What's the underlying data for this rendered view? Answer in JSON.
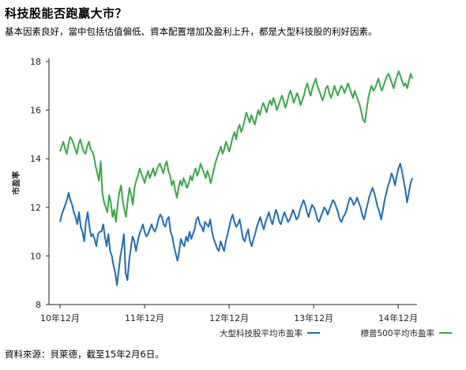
{
  "title": "科技股能否跑贏大市？",
  "subtitle": "基本因素良好，當中包括估值偏低、資本配置增加及盈利上升，都是大型科技股的利好因素。",
  "source": "資料來源：貝萊德，截至15年2月6日。",
  "chart_data": {
    "type": "line",
    "ylabel": "市盈率",
    "ylim": [
      8,
      18
    ],
    "yticks": [
      8,
      10,
      12,
      14,
      16,
      18
    ],
    "xticks": [
      "10年12月",
      "11年12月",
      "12年12月",
      "13年12月",
      "14年12月"
    ],
    "x_start": "2010-12",
    "x_end": "2015-02",
    "grid": false,
    "legend_position": "bottom-right",
    "series": [
      {
        "name": "大型科技股平均市盈率",
        "color": "#1f6db5",
        "values": [
          11.4,
          11.7,
          11.9,
          12.1,
          12.3,
          12.6,
          12.3,
          12.1,
          11.8,
          11.6,
          11.3,
          11.8,
          11.2,
          11.0,
          10.6,
          11.4,
          11.8,
          11.2,
          10.8,
          10.9,
          10.7,
          10.4,
          10.9,
          11.0,
          11.0,
          11.3,
          10.8,
          10.4,
          10.9,
          10.2,
          10.0,
          9.6,
          9.3,
          8.8,
          9.4,
          10.0,
          10.4,
          10.9,
          9.3,
          9.0,
          9.8,
          10.3,
          10.8,
          10.6,
          10.2,
          10.6,
          10.9,
          11.1,
          11.3,
          11.0,
          10.8,
          10.9,
          11.1,
          11.3,
          11.1,
          11.0,
          11.2,
          11.5,
          11.7,
          11.6,
          11.3,
          11.2,
          11.5,
          11.6,
          11.0,
          10.8,
          10.4,
          10.1,
          9.8,
          10.2,
          10.7,
          10.5,
          10.4,
          10.8,
          10.6,
          11.0,
          10.7,
          10.9,
          11.1,
          11.5,
          11.6,
          11.3,
          11.2,
          11.0,
          11.4,
          11.3,
          11.2,
          11.5,
          11.0,
          10.7,
          10.5,
          10.3,
          10.2,
          10.6,
          10.4,
          10.2,
          10.6,
          10.9,
          11.2,
          11.5,
          11.7,
          11.4,
          11.2,
          11.3,
          11.5,
          11.1,
          10.7,
          10.6,
          10.9,
          11.1,
          10.6,
          10.4,
          10.7,
          10.9,
          11.2,
          11.4,
          11.6,
          11.3,
          11.1,
          11.4,
          11.6,
          11.8,
          11.5,
          11.3,
          11.6,
          11.9,
          11.7,
          11.4,
          11.3,
          11.6,
          11.8,
          11.6,
          11.4,
          11.5,
          11.7,
          11.9,
          11.7,
          11.5,
          11.6,
          11.9,
          12.1,
          12.3,
          12.1,
          11.8,
          11.6,
          11.9,
          12.1,
          12.0,
          11.8,
          11.5,
          11.4,
          11.6,
          11.8,
          12.0,
          11.9,
          11.7,
          11.9,
          12.1,
          12.3,
          12.2,
          12.0,
          11.8,
          11.5,
          11.4,
          11.6,
          11.7,
          11.9,
          12.2,
          12.4,
          12.3,
          12.1,
          12.2,
          12.4,
          12.2,
          12.0,
          11.7,
          11.5,
          11.8,
          12.1,
          12.4,
          12.6,
          12.8,
          12.6,
          12.3,
          12.0,
          11.8,
          11.5,
          11.9,
          12.3,
          12.6,
          12.9,
          13.1,
          13.4,
          13.2,
          12.9,
          13.3,
          13.6,
          13.8,
          13.5,
          13.1,
          12.7,
          12.2,
          12.6,
          13.0,
          13.2
        ]
      },
      {
        "name": "標普500平均市盈率",
        "color": "#3aa64a",
        "values": [
          14.3,
          14.5,
          14.7,
          14.4,
          14.2,
          14.6,
          14.9,
          14.8,
          14.6,
          14.4,
          14.2,
          14.6,
          14.8,
          14.5,
          14.3,
          14.2,
          14.5,
          14.7,
          14.4,
          14.3,
          14.1,
          13.7,
          13.4,
          13.1,
          13.9,
          12.6,
          12.2,
          12.0,
          11.8,
          12.5,
          12.2,
          11.6,
          11.9,
          11.4,
          12.1,
          12.6,
          12.9,
          12.3,
          11.9,
          11.6,
          12.3,
          12.8,
          12.5,
          12.1,
          12.8,
          13.1,
          13.3,
          13.6,
          13.4,
          13.2,
          13.0,
          13.3,
          13.5,
          13.2,
          13.4,
          13.6,
          13.3,
          13.5,
          13.7,
          13.8,
          13.6,
          13.4,
          13.7,
          13.9,
          13.5,
          13.3,
          12.9,
          13.1,
          12.7,
          12.4,
          12.8,
          13.1,
          12.9,
          13.2,
          13.0,
          12.8,
          13.0,
          13.3,
          13.1,
          13.4,
          13.6,
          13.3,
          13.5,
          13.8,
          13.6,
          13.4,
          13.2,
          13.5,
          13.3,
          13.0,
          13.3,
          13.6,
          13.9,
          14.1,
          14.3,
          14.5,
          14.2,
          14.4,
          14.7,
          14.5,
          14.3,
          14.6,
          14.9,
          15.1,
          14.8,
          15.2,
          15.4,
          15.1,
          15.3,
          15.6,
          15.9,
          15.7,
          15.5,
          15.8,
          15.6,
          15.4,
          15.7,
          16.0,
          15.8,
          16.1,
          16.3,
          16.1,
          15.9,
          16.2,
          16.4,
          16.2,
          16.5,
          16.3,
          16.0,
          16.2,
          16.4,
          16.6,
          16.4,
          16.1,
          16.3,
          16.6,
          16.8,
          16.6,
          16.3,
          16.5,
          16.7,
          16.5,
          16.2,
          16.4,
          16.6,
          16.9,
          17.1,
          16.8,
          16.6,
          16.9,
          17.1,
          17.3,
          17.0,
          16.8,
          16.6,
          16.4,
          16.6,
          16.9,
          17.0,
          16.7,
          16.5,
          16.7,
          17.0,
          16.8,
          16.6,
          16.8,
          17.0,
          16.9,
          16.7,
          16.9,
          17.1,
          16.9,
          16.7,
          16.5,
          16.8,
          16.6,
          16.4,
          16.2,
          15.9,
          15.6,
          15.5,
          16.0,
          16.5,
          16.8,
          17.0,
          16.8,
          16.9,
          17.1,
          17.3,
          17.0,
          16.8,
          17.0,
          17.2,
          17.4,
          17.5,
          17.3,
          17.1,
          16.9,
          17.2,
          17.4,
          17.6,
          17.4,
          17.2,
          17.0,
          17.1,
          16.9,
          17.2,
          17.5,
          17.3
        ]
      }
    ]
  }
}
